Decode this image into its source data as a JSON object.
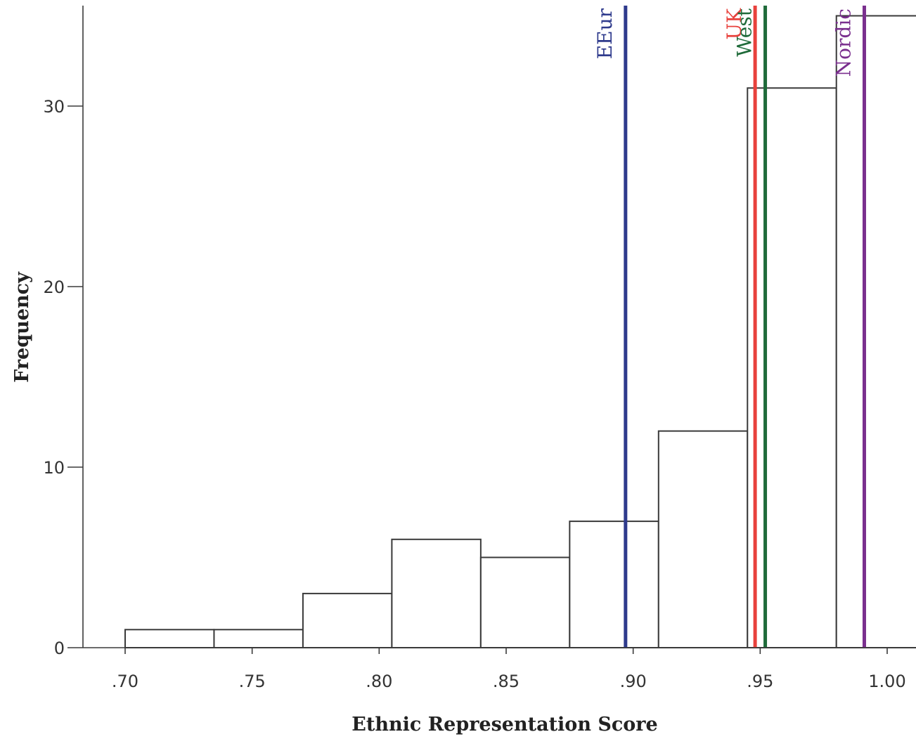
{
  "chart_data": {
    "type": "bar",
    "subtype": "histogram",
    "xlabel": "Ethnic Representation Score",
    "ylabel": "Frequency",
    "xlim": [
      0.683,
      1.012
    ],
    "ylim": [
      0,
      35.5
    ],
    "x_ticks": [
      {
        "value": 0.7,
        "label": ".70"
      },
      {
        "value": 0.75,
        "label": ".75"
      },
      {
        "value": 0.8,
        "label": ".80"
      },
      {
        "value": 0.85,
        "label": ".85"
      },
      {
        "value": 0.9,
        "label": ".90"
      },
      {
        "value": 0.95,
        "label": ".95"
      },
      {
        "value": 1.0,
        "label": "1.00"
      }
    ],
    "y_ticks": [
      {
        "value": 0,
        "label": "0"
      },
      {
        "value": 10,
        "label": "10"
      },
      {
        "value": 20,
        "label": "20"
      },
      {
        "value": 30,
        "label": "30"
      }
    ],
    "bins": [
      {
        "start": 0.7,
        "end": 0.735,
        "count": 1
      },
      {
        "start": 0.735,
        "end": 0.77,
        "count": 1
      },
      {
        "start": 0.77,
        "end": 0.805,
        "count": 3
      },
      {
        "start": 0.805,
        "end": 0.84,
        "count": 6
      },
      {
        "start": 0.84,
        "end": 0.875,
        "count": 5
      },
      {
        "start": 0.875,
        "end": 0.91,
        "count": 7
      },
      {
        "start": 0.91,
        "end": 0.945,
        "count": 12
      },
      {
        "start": 0.945,
        "end": 0.98,
        "count": 31
      },
      {
        "start": 0.98,
        "end": 1.015,
        "count": 35
      }
    ],
    "reference_lines": [
      {
        "label": "EEur",
        "value": 0.897,
        "color": "#2e3a8c"
      },
      {
        "label": "UK",
        "value": 0.948,
        "color": "#e8413c"
      },
      {
        "label": "West",
        "value": 0.952,
        "color": "#1f6b3a"
      },
      {
        "label": "Nordic",
        "value": 0.991,
        "color": "#7a2f8e"
      }
    ],
    "grid": false,
    "legend": "none"
  }
}
